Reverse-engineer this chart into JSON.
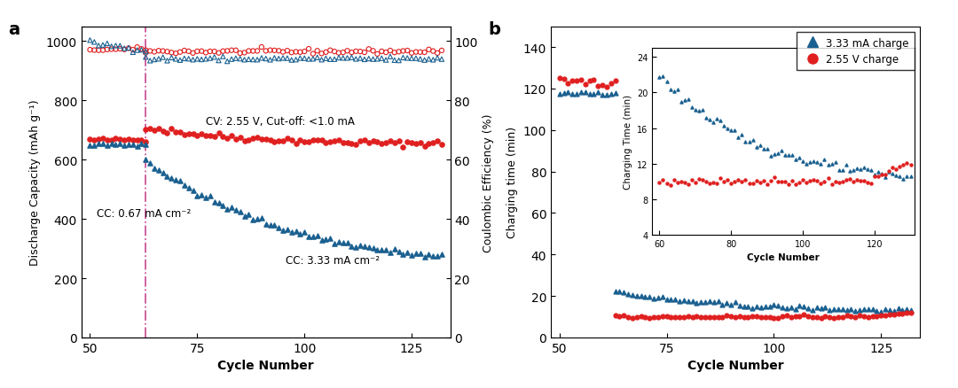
{
  "panel_a": {
    "dashed_line_x": 63,
    "annotation_cv": "CV: 2.55 V, Cut-off: <1.0 mA",
    "annotation_cc1": "CC: 0.67 mA cm⁻²",
    "annotation_cc2": "CC: 3.33 mA cm⁻²",
    "xlabel": "Cycle Number",
    "ylabel_left": "Discharge Capacity (mAh g⁻¹)",
    "ylabel_right": "Coulombic Efficiency (%)",
    "ylim_left": [
      0,
      1050
    ],
    "ylim_right": [
      0,
      105
    ],
    "yticks_left": [
      0,
      200,
      400,
      600,
      800,
      1000
    ],
    "yticks_right": [
      0,
      20,
      40,
      60,
      80,
      100
    ],
    "xticks": [
      50,
      75,
      100,
      125
    ],
    "xlim": [
      48,
      134
    ],
    "red_color": "#e02020",
    "blue_color": "#1a6090",
    "dashed_color": "#cc5599"
  },
  "panel_b": {
    "xlabel": "Cycle Number",
    "ylabel": "Charging time (min)",
    "ylim": [
      0,
      150
    ],
    "yticks": [
      0,
      20,
      40,
      60,
      80,
      100,
      120,
      140
    ],
    "xticks": [
      50,
      75,
      100,
      125
    ],
    "xlim": [
      48,
      134
    ],
    "legend_label_blue": "3.33 mA charge",
    "legend_label_red": "2.55 V charge",
    "red_color": "#e02020",
    "blue_color": "#1a6090",
    "inset": {
      "xlim": [
        58,
        131
      ],
      "ylim": [
        4,
        25
      ],
      "yticks": [
        4,
        8,
        12,
        16,
        20,
        24
      ],
      "xticks": [
        60,
        80,
        100,
        120
      ],
      "xlabel": "Cycle Number",
      "ylabel": "Charging Time (min)"
    }
  }
}
